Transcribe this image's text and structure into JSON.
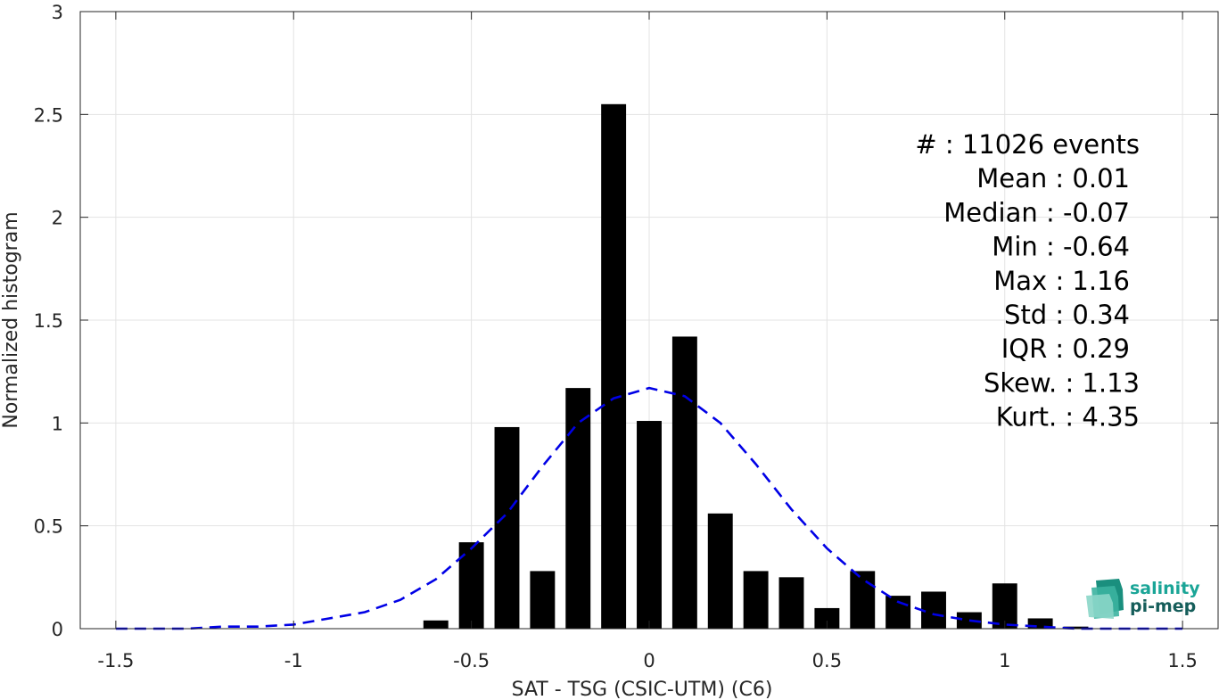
{
  "chart_data": {
    "type": "bar",
    "xlabel": "SAT - TSG (CSIC-UTM) (C6)",
    "ylabel": "Normalized histogram",
    "xlim": [
      -1.6,
      1.6
    ],
    "ylim": [
      0,
      3
    ],
    "xticks": [
      -1.5,
      -1,
      -0.5,
      0,
      0.5,
      1,
      1.5
    ],
    "xtick_labels": [
      "-1.5",
      "-1",
      "-0.5",
      "0",
      "0.5",
      "1",
      "1.5"
    ],
    "yticks": [
      0,
      0.5,
      1,
      1.5,
      2,
      2.5,
      3
    ],
    "ytick_labels": [
      "0",
      "0.5",
      "1",
      "1.5",
      "2",
      "2.5",
      "3"
    ],
    "grid": true,
    "bar_width": 0.07,
    "bar_color": "#000000",
    "bars": {
      "x": [
        -0.6,
        -0.5,
        -0.4,
        -0.3,
        -0.2,
        -0.1,
        0.0,
        0.1,
        0.2,
        0.3,
        0.4,
        0.5,
        0.6,
        0.7,
        0.8,
        0.9,
        1.0,
        1.1,
        1.2
      ],
      "values": [
        0.04,
        0.42,
        0.98,
        0.28,
        1.17,
        2.55,
        1.01,
        1.42,
        0.56,
        0.28,
        0.25,
        0.1,
        0.28,
        0.16,
        0.18,
        0.08,
        0.22,
        0.05,
        0.01
      ]
    },
    "fit_curve": {
      "style": "dashed",
      "color": "#0000e6",
      "x": [
        -1.5,
        -1.4,
        -1.3,
        -1.2,
        -1.1,
        -1.0,
        -0.9,
        -0.8,
        -0.7,
        -0.6,
        -0.5,
        -0.4,
        -0.3,
        -0.2,
        -0.1,
        0.0,
        0.1,
        0.2,
        0.3,
        0.4,
        0.5,
        0.6,
        0.7,
        0.8,
        0.9,
        1.0,
        1.1,
        1.2,
        1.3,
        1.4,
        1.5
      ],
      "y": [
        0.0,
        0.0,
        0.0,
        0.01,
        0.01,
        0.02,
        0.05,
        0.08,
        0.14,
        0.24,
        0.39,
        0.56,
        0.79,
        1.0,
        1.12,
        1.17,
        1.13,
        1.0,
        0.8,
        0.58,
        0.39,
        0.24,
        0.13,
        0.07,
        0.04,
        0.02,
        0.01,
        0.0,
        0.0,
        0.0,
        0.0
      ]
    },
    "stats": [
      {
        "label": "#  : 11026 events"
      },
      {
        "label": "Mean : 0.01"
      },
      {
        "label": "Median : -0.07"
      },
      {
        "label": "Min : -0.64"
      },
      {
        "label": "Max : 1.16"
      },
      {
        "label": "Std : 0.34"
      },
      {
        "label": "IQR : 0.29"
      },
      {
        "label": "Skew. : 1.13"
      },
      {
        "label": "Kurt. : 4.35"
      }
    ]
  },
  "logo": {
    "line1": "salinity",
    "line2": "pi-mep",
    "color1": "#1aa597",
    "color2": "#155d5a"
  }
}
